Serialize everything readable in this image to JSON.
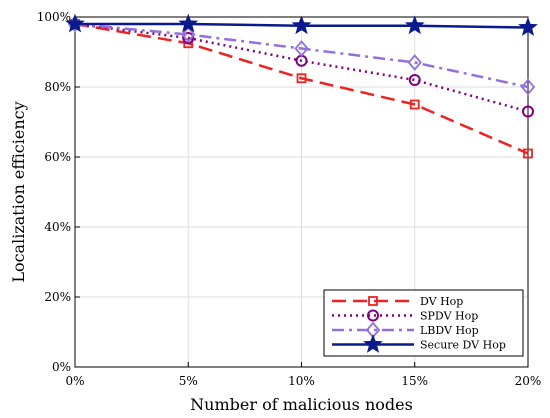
{
  "chart_data": {
    "type": "line",
    "title": "",
    "xlabel": "Number of malicious nodes",
    "ylabel": "Localization efficiency",
    "categories": [
      "0%",
      "5%",
      "10%",
      "15%",
      "20%"
    ],
    "x": [
      0,
      5,
      10,
      15,
      20
    ],
    "xlim": [
      0,
      20
    ],
    "ylim": [
      0,
      100
    ],
    "yticks": [
      0,
      20,
      40,
      60,
      80,
      100
    ],
    "ytick_labels": [
      "0%",
      "20%",
      "40%",
      "60%",
      "80%",
      "100%"
    ],
    "grid": true,
    "legend_position": "bottom-right",
    "series": [
      {
        "name": "DV Hop",
        "values": [
          98,
          92.5,
          82.5,
          75,
          61
        ],
        "color": "#ee2222",
        "marker": "square",
        "dash": "dashed"
      },
      {
        "name": "SPDV Hop",
        "values": [
          98,
          94,
          87.5,
          82,
          73
        ],
        "color": "#800080",
        "marker": "circle",
        "dash": "dotted"
      },
      {
        "name": "LBDV Hop",
        "values": [
          98,
          95,
          91,
          87,
          80
        ],
        "color": "#9370db",
        "marker": "diamond",
        "dash": "dashdot"
      },
      {
        "name": "Secure DV Hop",
        "values": [
          98,
          98,
          97.5,
          97.5,
          97
        ],
        "color": "#0a1a8c",
        "marker": "star",
        "dash": "solid"
      }
    ]
  }
}
